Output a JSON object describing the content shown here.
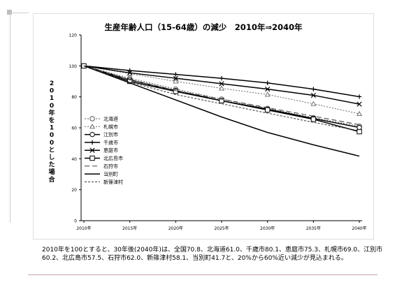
{
  "chart_data": {
    "type": "line",
    "title": "生産年齢人口（15-64歳）の減少　2010年⇒2040年",
    "ylabel": "2010年を100とした場合",
    "xlabel": "",
    "x": [
      "2010年",
      "2015年",
      "2020年",
      "2025年",
      "2030年",
      "2035年",
      "2040年"
    ],
    "ylim": [
      0,
      120
    ],
    "yticks": [
      0,
      20,
      40,
      60,
      80,
      100,
      120
    ],
    "grid": false,
    "legend": "left-inside",
    "series": [
      {
        "name": "北海道",
        "values": [
          100,
          92.0,
          85.0,
          78.5,
          72.5,
          66.5,
          61.0
        ],
        "color": "#555555",
        "dash": "2,2",
        "width": 1,
        "marker": "circle"
      },
      {
        "name": "札幌市",
        "values": [
          100,
          95.0,
          90.0,
          85.5,
          81.5,
          75.5,
          69.0
        ],
        "color": "#666666",
        "dash": "2,2",
        "width": 1,
        "marker": "triangle"
      },
      {
        "name": "江別市",
        "values": [
          100,
          91.0,
          84.0,
          77.5,
          72.0,
          66.0,
          60.2
        ],
        "color": "#000000",
        "dash": "",
        "width": 1.5,
        "marker": "circle"
      },
      {
        "name": "千歳市",
        "values": [
          100,
          97.0,
          94.5,
          92.0,
          89.0,
          85.0,
          80.1
        ],
        "color": "#000000",
        "dash": "",
        "width": 1.5,
        "marker": "plus"
      },
      {
        "name": "恵庭市",
        "values": [
          100,
          95.5,
          92.0,
          88.5,
          85.0,
          81.0,
          75.3
        ],
        "color": "#000000",
        "dash": "",
        "width": 1.5,
        "marker": "x"
      },
      {
        "name": "北広島市",
        "values": [
          100,
          90.0,
          83.5,
          77.5,
          71.5,
          65.5,
          57.5
        ],
        "color": "#000000",
        "dash": "",
        "width": 1.5,
        "marker": "square"
      },
      {
        "name": "石狩市",
        "values": [
          100,
          91.0,
          84.0,
          78.5,
          73.0,
          67.5,
          62.0
        ],
        "color": "#555555",
        "dash": "7,4",
        "width": 1.2,
        "marker": "none"
      },
      {
        "name": "当別町",
        "values": [
          100,
          89.0,
          78.0,
          67.0,
          57.0,
          49.0,
          41.7
        ],
        "color": "#000000",
        "dash": "",
        "width": 1.5,
        "marker": "none"
      },
      {
        "name": "新篠津村",
        "values": [
          100,
          89.5,
          81.5,
          75.5,
          69.5,
          63.5,
          58.1
        ],
        "color": "#333333",
        "dash": "3,2",
        "width": 1,
        "marker": "none"
      }
    ]
  },
  "caption": "2010年を100とすると、30年後(2040年)は、全国70.8、北海道61.0、千歳市80.1、恵庭市75.3、札幌市69.0、江別市60.2、北広島市57.5、石狩市62.0、新篠津村58.1、当別町41.7と、20%から60%近い減少が見込まれる。"
}
